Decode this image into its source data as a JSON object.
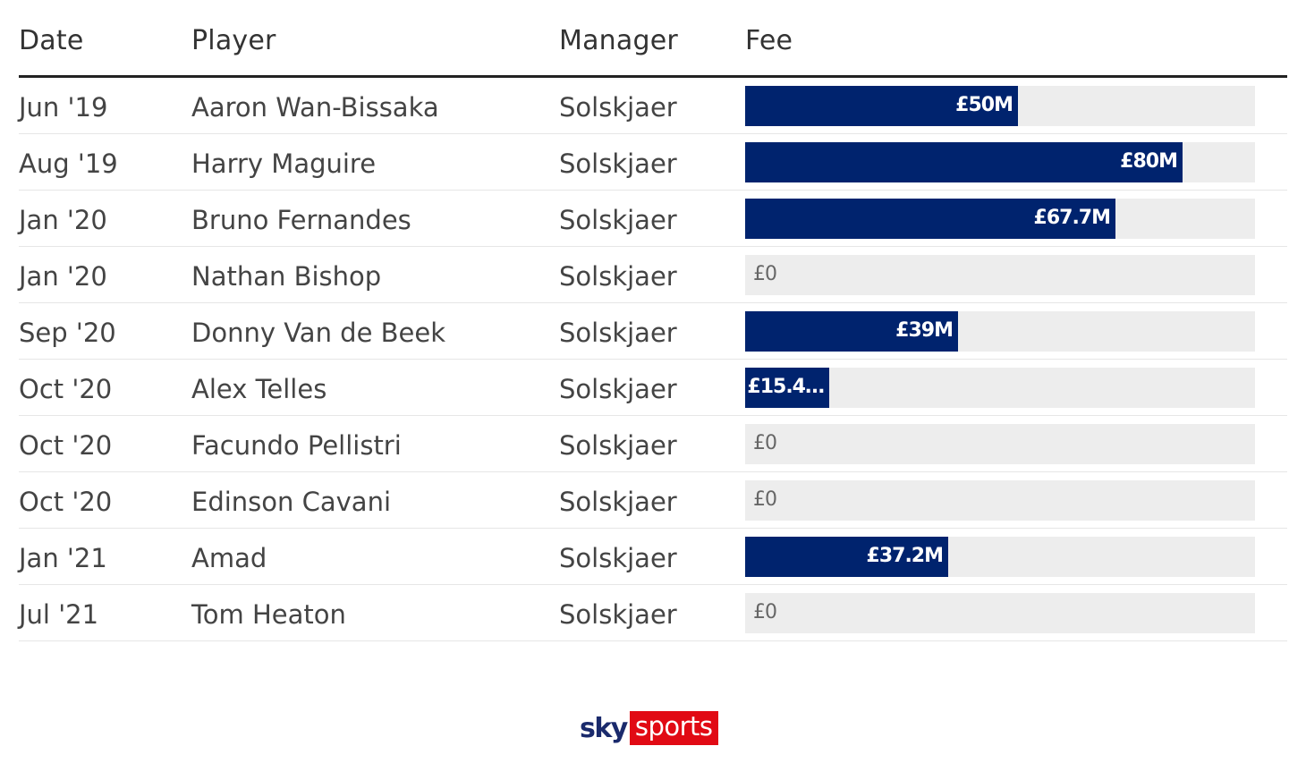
{
  "columns": {
    "date": "Date",
    "player": "Player",
    "manager": "Manager",
    "fee": "Fee"
  },
  "rows": [
    {
      "date": "Jun '19",
      "player": "Aaron Wan-Bissaka",
      "manager": "Solskjaer",
      "fee_label": "£50M"
    },
    {
      "date": "Aug '19",
      "player": "Harry Maguire",
      "manager": "Solskjaer",
      "fee_label": "£80M"
    },
    {
      "date": "Jan '20",
      "player": "Bruno Fernandes",
      "manager": "Solskjaer",
      "fee_label": "£67.7M"
    },
    {
      "date": "Jan '20",
      "player": "Nathan Bishop",
      "manager": "Solskjaer",
      "fee_label": "£0"
    },
    {
      "date": "Sep '20",
      "player": "Donny Van de Beek",
      "manager": "Solskjaer",
      "fee_label": "£39M"
    },
    {
      "date": "Oct '20",
      "player": "Alex Telles",
      "manager": "Solskjaer",
      "fee_label": "£15.4…"
    },
    {
      "date": "Oct '20",
      "player": "Facundo Pellistri",
      "manager": "Solskjaer",
      "fee_label": "£0"
    },
    {
      "date": "Oct '20",
      "player": "Edinson Cavani",
      "manager": "Solskjaer",
      "fee_label": "£0"
    },
    {
      "date": "Jan '21",
      "player": "Amad",
      "manager": "Solskjaer",
      "fee_label": "£37.2M"
    },
    {
      "date": "Jul '21",
      "player": "Tom Heaton",
      "manager": "Solskjaer",
      "fee_label": "£0"
    }
  ],
  "chart_data": {
    "type": "bar",
    "orientation": "horizontal",
    "categories": [
      "Aaron Wan-Bissaka",
      "Harry Maguire",
      "Bruno Fernandes",
      "Nathan Bishop",
      "Donny Van de Beek",
      "Alex Telles",
      "Facundo Pellistri",
      "Edinson Cavani",
      "Amad",
      "Tom Heaton"
    ],
    "values": [
      50,
      80,
      67.7,
      0,
      39,
      15.4,
      0,
      0,
      37.2,
      0
    ],
    "value_unit": "£M",
    "xlim": [
      0,
      93.3
    ]
  },
  "logo": {
    "sky": "sky",
    "sports": "sports"
  },
  "colors": {
    "bar": "#00236e",
    "track": "#ededed",
    "brand_red": "#e10a14"
  }
}
